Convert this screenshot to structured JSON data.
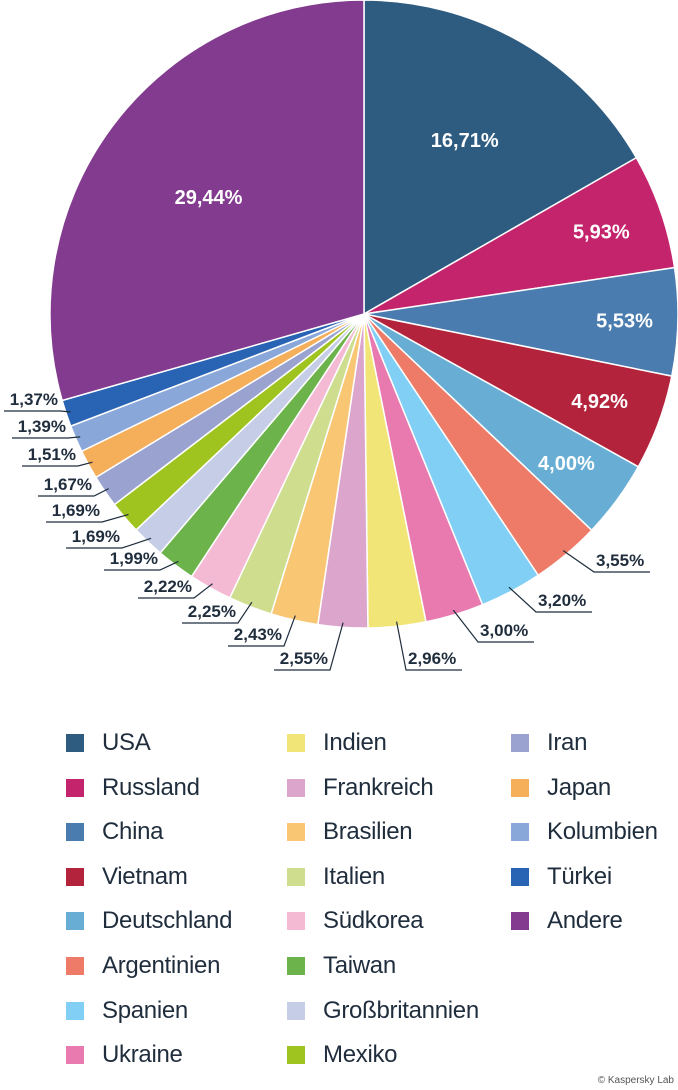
{
  "chart_data": {
    "type": "pie",
    "start": "12 o'clock, clockwise",
    "categories": [
      "USA",
      "Russland",
      "China",
      "Vietnam",
      "Deutschland",
      "Argentinien",
      "Spanien",
      "Ukraine",
      "Indien",
      "Frankreich",
      "Brasilien",
      "Italien",
      "Südkorea",
      "Taiwan",
      "Großbritannien",
      "Mexiko",
      "Iran",
      "Japan",
      "Kolumbien",
      "Türkei",
      "Andere"
    ],
    "values": [
      16.71,
      5.93,
      5.53,
      4.92,
      4.0,
      3.55,
      3.2,
      3.0,
      2.96,
      2.55,
      2.43,
      2.25,
      2.22,
      1.99,
      1.69,
      1.69,
      1.67,
      1.51,
      1.39,
      1.37,
      29.44
    ],
    "labels": [
      "16,71%",
      "5,93%",
      "5,53%",
      "4,92%",
      "4,00%",
      "3,55%",
      "3,20%",
      "3,00%",
      "2,96%",
      "2,55%",
      "2,43%",
      "2,25%",
      "2,22%",
      "1,99%",
      "1,69%",
      "1,69%",
      "1,67%",
      "1,51%",
      "1,39%",
      "1,37%",
      "29,44%"
    ],
    "colors": [
      "#2e5b80",
      "#c4246c",
      "#4a7cb0",
      "#b3243c",
      "#68aed4",
      "#ee7b68",
      "#82cff5",
      "#e97aaf",
      "#f2e577",
      "#dca6cc",
      "#f9c774",
      "#cfdd8f",
      "#f4b9d3",
      "#6bb34a",
      "#c6cde6",
      "#9fc31f",
      "#9aa2d0",
      "#f5ae5a",
      "#89a7d8",
      "#2963b3",
      "#823b8e"
    ],
    "legend": {
      "placement": "bottom",
      "columns": 3
    }
  },
  "credit": "© Kaspersky Lab"
}
